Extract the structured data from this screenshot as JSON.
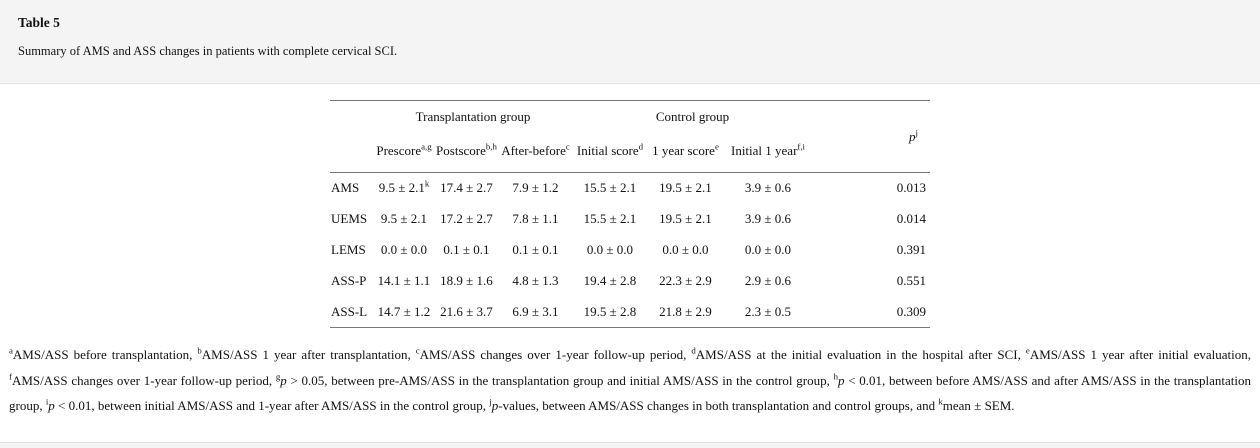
{
  "header": {
    "title": "Table 5",
    "subtitle": "Summary of AMS and ASS changes in patients with complete cervical SCI."
  },
  "table": {
    "group_headers": [
      {
        "label": "Transplantation group"
      },
      {
        "label": "Control group"
      }
    ],
    "p_header": {
      "italic": "p",
      "sup": "j"
    },
    "columns": [
      {
        "label": "Prescore",
        "sup": "a,g"
      },
      {
        "label": "Postscore",
        "sup": "b,h"
      },
      {
        "label": "After-before",
        "sup": "c"
      },
      {
        "label": "Initial score",
        "sup": "d"
      },
      {
        "label": "1 year score",
        "sup": "e"
      },
      {
        "label": "Initial 1 year",
        "sup": "f,i"
      }
    ],
    "rows": [
      {
        "label": "AMS",
        "cells": [
          {
            "text": "9.5 ± 2.1",
            "sup": "k"
          },
          {
            "text": "17.4 ± 2.7"
          },
          {
            "text": "7.9 ± 1.2"
          },
          {
            "text": "15.5 ± 2.1"
          },
          {
            "text": "19.5 ± 2.1"
          },
          {
            "text": "3.9 ± 0.6"
          }
        ],
        "p": "0.013"
      },
      {
        "label": "UEMS",
        "cells": [
          {
            "text": "9.5 ± 2.1"
          },
          {
            "text": "17.2 ± 2.7"
          },
          {
            "text": "7.8 ± 1.1"
          },
          {
            "text": "15.5 ± 2.1"
          },
          {
            "text": "19.5 ± 2.1"
          },
          {
            "text": "3.9 ± 0.6"
          }
        ],
        "p": "0.014"
      },
      {
        "label": "LEMS",
        "cells": [
          {
            "text": "0.0 ± 0.0"
          },
          {
            "text": "0.1 ± 0.1"
          },
          {
            "text": "0.1 ± 0.1"
          },
          {
            "text": "0.0 ± 0.0"
          },
          {
            "text": "0.0 ± 0.0"
          },
          {
            "text": "0.0 ± 0.0"
          }
        ],
        "p": "0.391"
      },
      {
        "label": "ASS-P",
        "cells": [
          {
            "text": "14.1 ± 1.1"
          },
          {
            "text": "18.9 ± 1.6"
          },
          {
            "text": "4.8 ± 1.3"
          },
          {
            "text": "19.4 ± 2.8"
          },
          {
            "text": "22.3 ± 2.9"
          },
          {
            "text": "2.9 ± 0.6"
          }
        ],
        "p": "0.551"
      },
      {
        "label": "ASS-L",
        "cells": [
          {
            "text": "14.7 ± 1.2"
          },
          {
            "text": "21.6 ± 3.7"
          },
          {
            "text": "6.9 ± 3.1"
          },
          {
            "text": "19.5 ± 2.8"
          },
          {
            "text": "21.8 ± 2.9"
          },
          {
            "text": "2.3 ± 0.5"
          }
        ],
        "p": "0.309"
      }
    ]
  },
  "footnotes": [
    {
      "sup": "a",
      "text": "AMS/ASS before transplantation, "
    },
    {
      "sup": "b",
      "text": "AMS/ASS 1 year after transplantation, "
    },
    {
      "sup": "c",
      "text": "AMS/ASS changes over 1-year follow-up period, "
    },
    {
      "sup": "d",
      "text": "AMS/ASS at the initial evaluation in the hospital after SCI, "
    },
    {
      "sup": "e",
      "text": "AMS/ASS 1 year after initial evaluation, "
    },
    {
      "sup": "f",
      "text": "AMS/ASS changes over 1-year follow-up period, "
    },
    {
      "sup": "g",
      "italic": "p",
      "text": " > 0.05, between pre-AMS/ASS in the transplantation group and initial AMS/ASS in the control group, "
    },
    {
      "sup": "h",
      "italic": "p",
      "text": " < 0.01, between before AMS/ASS and after AMS/ASS in the transplantation group, "
    },
    {
      "sup": "i",
      "italic": "p",
      "text": " < 0.01, between initial AMS/ASS and 1-year after AMS/ASS in the control group, "
    },
    {
      "sup": "j",
      "italic": "p",
      "text": "-values, between AMS/ASS changes in both transplantation and control groups, and "
    },
    {
      "sup": "k",
      "text": "mean ± SEM."
    }
  ],
  "colors": {
    "strip_bg": "#f4f4f4",
    "content_bg": "#ffffff",
    "divider": "#e0e0e0",
    "table_rule": "#777777",
    "text": "#111111"
  }
}
